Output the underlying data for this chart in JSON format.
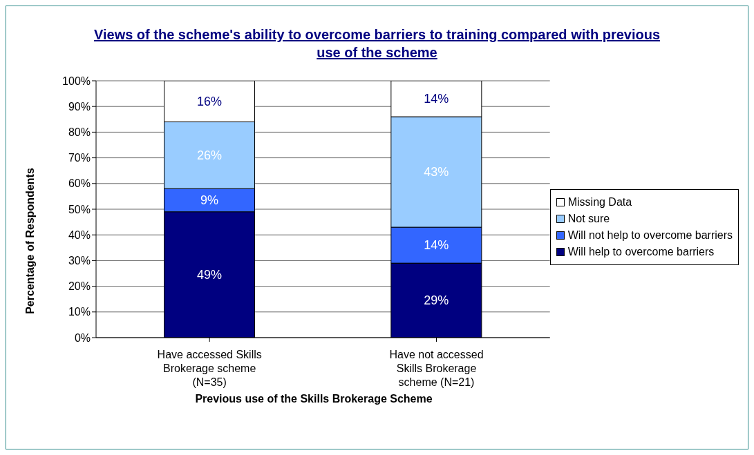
{
  "chart_data": {
    "type": "bar",
    "title": "Views of the scheme's ability to overcome barriers to training compared with previous use of the scheme",
    "xlabel": "Previous use of the Skills Brokerage Scheme",
    "ylabel": "Percentage of Respondents",
    "categories": [
      "Have accessed Skills Brokerage scheme (N=35)",
      "Have not accessed Skills Brokerage scheme (N=21)"
    ],
    "stacked": true,
    "series": [
      {
        "name": "Will help to overcome barriers",
        "color": "#000080",
        "values": [
          49,
          29
        ],
        "value_labels": [
          "49%",
          "29%"
        ]
      },
      {
        "name": "Will not help to overcome barriers",
        "color": "#3366ff",
        "values": [
          9,
          14
        ],
        "value_labels": [
          "9%",
          "14%"
        ]
      },
      {
        "name": "Not sure",
        "color": "#99ccff",
        "values": [
          26,
          43
        ],
        "value_labels": [
          "26%",
          "43%"
        ]
      },
      {
        "name": "Missing Data",
        "color": "#ffffff",
        "values": [
          16,
          14
        ],
        "value_labels": [
          "16%",
          "14%"
        ]
      }
    ],
    "ylim": [
      0,
      100
    ],
    "yticks": [
      {
        "value": 0,
        "label": "0%"
      },
      {
        "value": 10,
        "label": "10%"
      },
      {
        "value": 20,
        "label": "20%"
      },
      {
        "value": 30,
        "label": "30%"
      },
      {
        "value": 40,
        "label": "40%"
      },
      {
        "value": 50,
        "label": "50%"
      },
      {
        "value": 60,
        "label": "60%"
      },
      {
        "value": 70,
        "label": "70%"
      },
      {
        "value": 80,
        "label": "80%"
      },
      {
        "value": 90,
        "label": "90%"
      },
      {
        "value": 100,
        "label": "100%"
      }
    ],
    "grid": "y",
    "legend": "right"
  }
}
